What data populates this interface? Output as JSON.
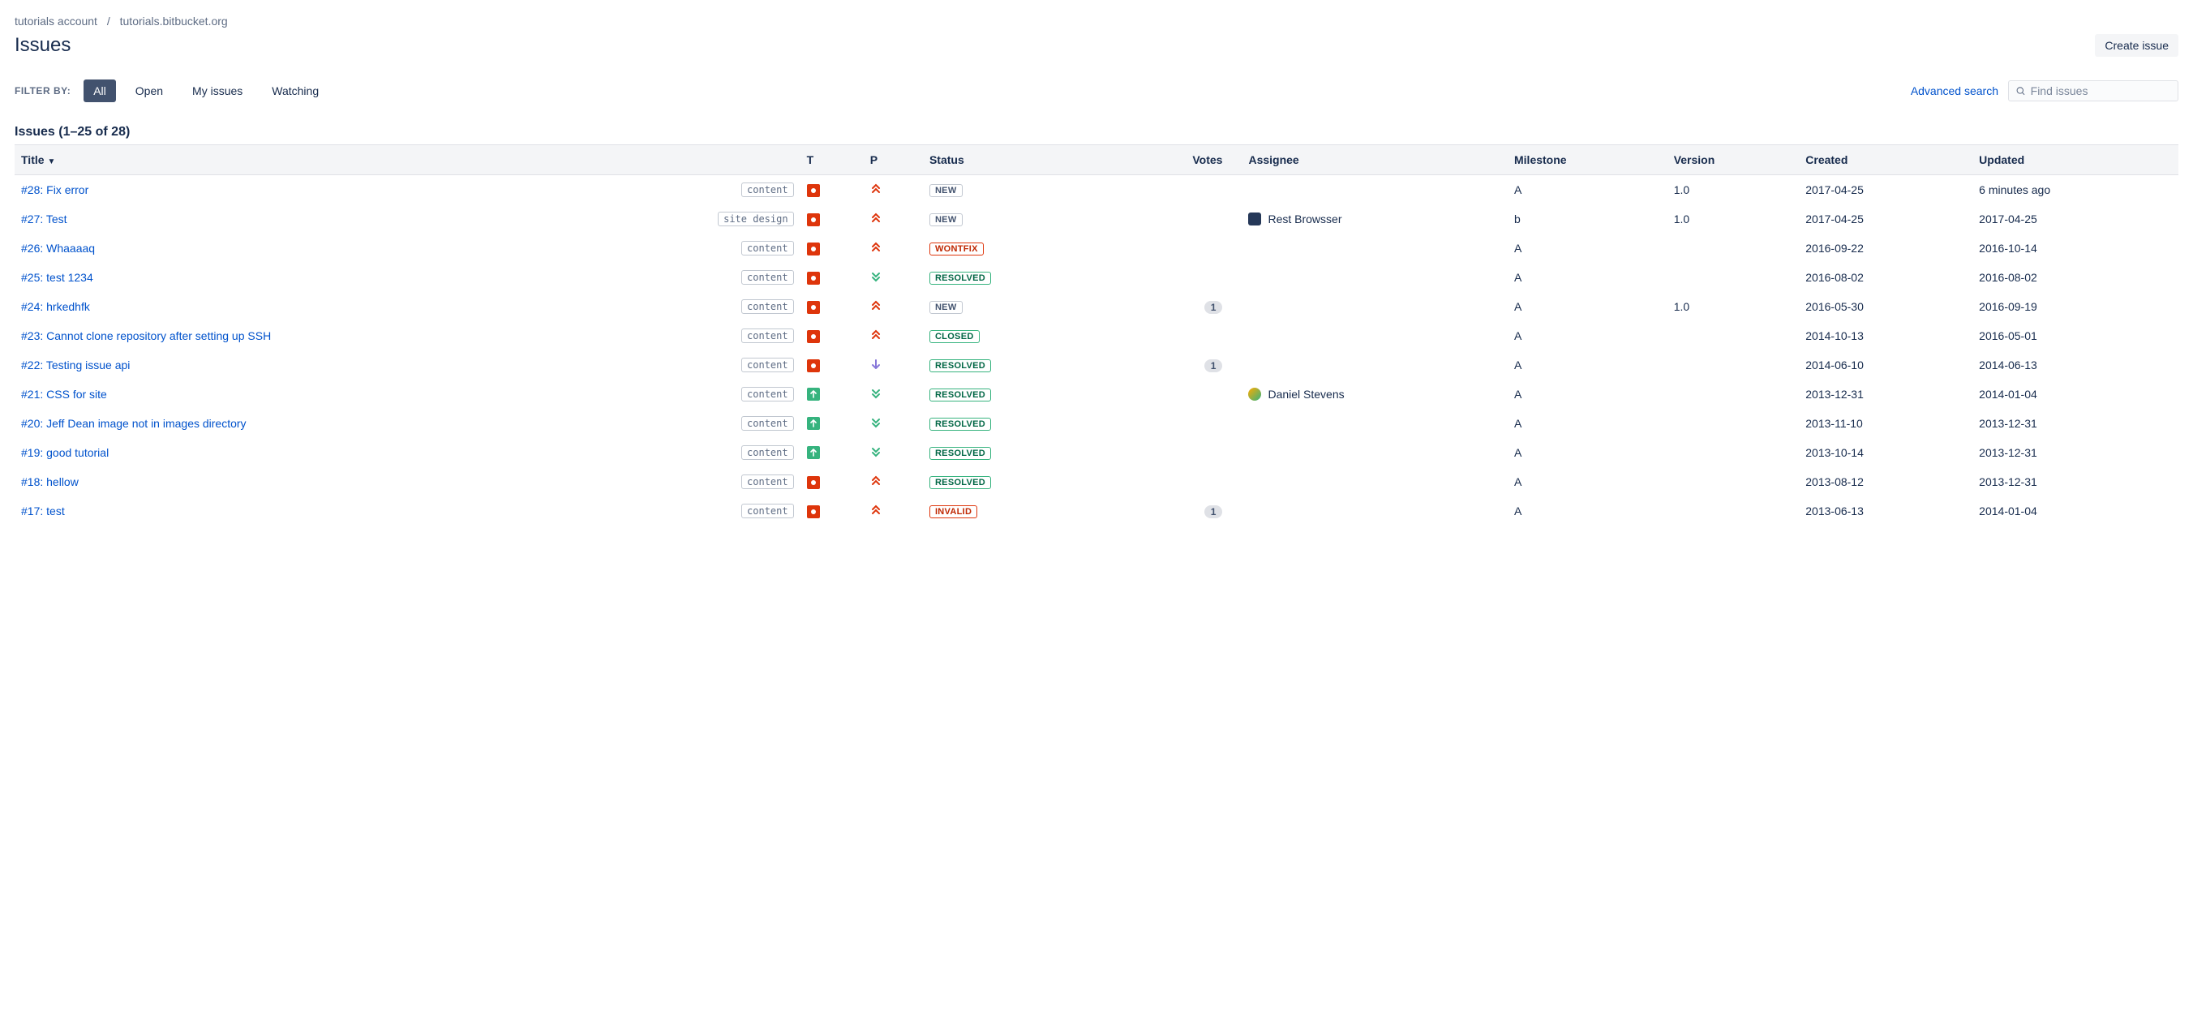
{
  "breadcrumb": {
    "account": "tutorials account",
    "repo": "tutorials.bitbucket.org"
  },
  "page_title": "Issues",
  "create_button": "Create issue",
  "filter": {
    "label": "FILTER BY:",
    "tabs": {
      "all": "All",
      "open": "Open",
      "my": "My issues",
      "watching": "Watching"
    },
    "advanced": "Advanced search",
    "placeholder": "Find issues"
  },
  "count_heading": "Issues (1–25 of 28)",
  "columns": {
    "title": "Title",
    "t": "T",
    "p": "P",
    "status": "Status",
    "votes": "Votes",
    "assignee": "Assignee",
    "milestone": "Milestone",
    "version": "Version",
    "created": "Created",
    "updated": "Updated"
  },
  "status_labels": {
    "new": "NEW",
    "wontfix": "WONTFIX",
    "resolved": "RESOLVED",
    "closed": "CLOSED",
    "invalid": "INVALID"
  },
  "priority_colors": {
    "critical": "#de350b",
    "trivial": "#36b37e",
    "minor": "#8777d9"
  },
  "rows": [
    {
      "id": "#28",
      "title": "Fix error",
      "tag": "content",
      "type": "bug",
      "priority": "critical",
      "status": "new",
      "votes": "",
      "assignee": "",
      "avatar": "",
      "milestone": "A",
      "version": "1.0",
      "created": "2017-04-25",
      "updated": "6 minutes ago"
    },
    {
      "id": "#27",
      "title": "Test",
      "tag": "site design",
      "type": "bug",
      "priority": "critical",
      "status": "new",
      "votes": "",
      "assignee": "Rest Browsser",
      "avatar": "bot",
      "milestone": "b",
      "version": "1.0",
      "created": "2017-04-25",
      "updated": "2017-04-25"
    },
    {
      "id": "#26",
      "title": "Whaaaaq",
      "tag": "content",
      "type": "bug",
      "priority": "critical",
      "status": "wontfix",
      "votes": "",
      "assignee": "",
      "avatar": "",
      "milestone": "A",
      "version": "",
      "created": "2016-09-22",
      "updated": "2016-10-14"
    },
    {
      "id": "#25",
      "title": "test 1234",
      "tag": "content",
      "type": "bug",
      "priority": "trivial",
      "status": "resolved",
      "votes": "",
      "assignee": "",
      "avatar": "",
      "milestone": "A",
      "version": "",
      "created": "2016-08-02",
      "updated": "2016-08-02"
    },
    {
      "id": "#24",
      "title": "hrkedhfk",
      "tag": "content",
      "type": "bug",
      "priority": "critical",
      "status": "new",
      "votes": "1",
      "assignee": "",
      "avatar": "",
      "milestone": "A",
      "version": "1.0",
      "created": "2016-05-30",
      "updated": "2016-09-19"
    },
    {
      "id": "#23",
      "title": "Cannot clone repository after setting up SSH",
      "tag": "content",
      "type": "bug",
      "priority": "critical",
      "status": "closed",
      "votes": "",
      "assignee": "",
      "avatar": "",
      "milestone": "A",
      "version": "",
      "created": "2014-10-13",
      "updated": "2016-05-01"
    },
    {
      "id": "#22",
      "title": "Testing issue api",
      "tag": "content",
      "type": "bug",
      "priority": "minor",
      "status": "resolved",
      "votes": "1",
      "assignee": "",
      "avatar": "",
      "milestone": "A",
      "version": "",
      "created": "2014-06-10",
      "updated": "2014-06-13"
    },
    {
      "id": "#21",
      "title": "CSS for site",
      "tag": "content",
      "type": "improvement",
      "priority": "trivial",
      "status": "resolved",
      "votes": "",
      "assignee": "Daniel Stevens",
      "avatar": "user",
      "milestone": "A",
      "version": "",
      "created": "2013-12-31",
      "updated": "2014-01-04"
    },
    {
      "id": "#20",
      "title": "Jeff Dean image not in images directory",
      "tag": "content",
      "type": "improvement",
      "priority": "trivial",
      "status": "resolved",
      "votes": "",
      "assignee": "",
      "avatar": "",
      "milestone": "A",
      "version": "",
      "created": "2013-11-10",
      "updated": "2013-12-31"
    },
    {
      "id": "#19",
      "title": "good tutorial",
      "tag": "content",
      "type": "improvement",
      "priority": "trivial",
      "status": "resolved",
      "votes": "",
      "assignee": "",
      "avatar": "",
      "milestone": "A",
      "version": "",
      "created": "2013-10-14",
      "updated": "2013-12-31"
    },
    {
      "id": "#18",
      "title": "hellow",
      "tag": "content",
      "type": "bug",
      "priority": "critical",
      "status": "resolved",
      "votes": "",
      "assignee": "",
      "avatar": "",
      "milestone": "A",
      "version": "",
      "created": "2013-08-12",
      "updated": "2013-12-31"
    },
    {
      "id": "#17",
      "title": "test",
      "tag": "content",
      "type": "bug",
      "priority": "critical",
      "status": "invalid",
      "votes": "1",
      "assignee": "",
      "avatar": "",
      "milestone": "A",
      "version": "",
      "created": "2013-06-13",
      "updated": "2014-01-04"
    }
  ]
}
